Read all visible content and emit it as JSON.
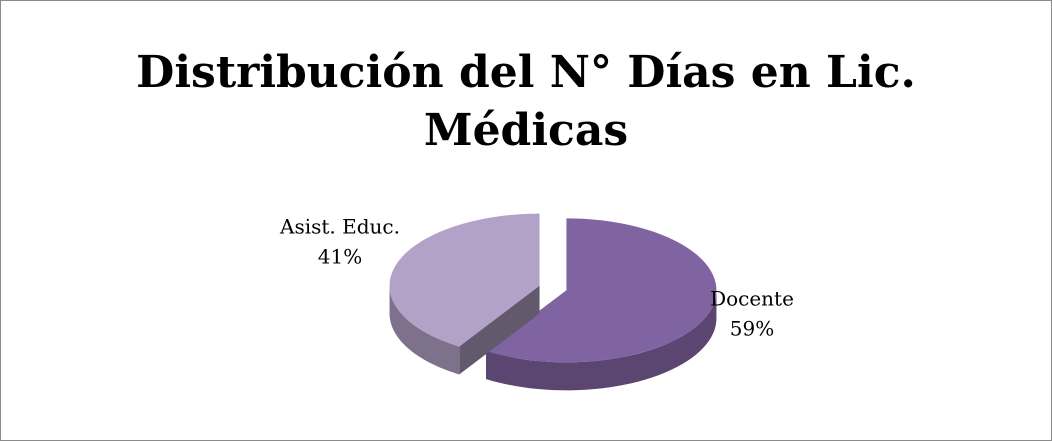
{
  "chart_data": {
    "type": "pie",
    "title": "Distribución del N° Días en Lic. Médicas",
    "categories": [
      "Docente",
      "Asist. Educ."
    ],
    "values": [
      59,
      41
    ],
    "value_labels": [
      "59%",
      "41%"
    ],
    "colors": [
      "#8064a2",
      "#b3a2c7"
    ]
  }
}
